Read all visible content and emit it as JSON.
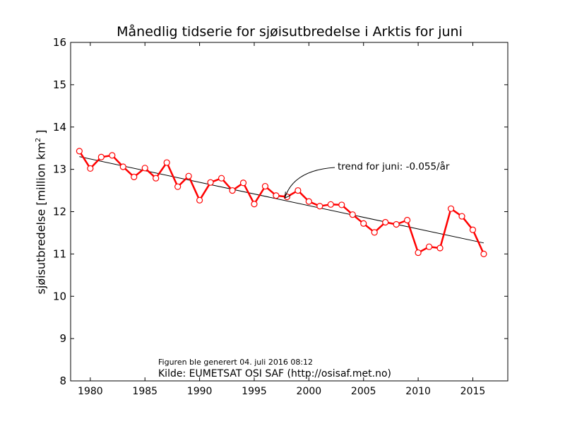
{
  "chart_data": {
    "type": "line",
    "title": "Månedlig tidserie for sjøisutbredelse i Arktis for juni",
    "xlabel": "",
    "ylabel_prefix": "sjøisutbredelse [million km",
    "ylabel_sup": "2",
    "ylabel_suffix": " ]",
    "xlim": [
      1978.2,
      2018.2
    ],
    "ylim": [
      8,
      16
    ],
    "xticks": [
      1980,
      1985,
      1990,
      1995,
      2000,
      2005,
      2010,
      2015
    ],
    "yticks": [
      8,
      9,
      10,
      11,
      12,
      13,
      14,
      15,
      16
    ],
    "grid": false,
    "series": [
      {
        "color": "#ff0000",
        "marker": "open-circle",
        "x": [
          1979,
          1980,
          1981,
          1982,
          1983,
          1984,
          1985,
          1986,
          1987,
          1988,
          1989,
          1990,
          1991,
          1992,
          1993,
          1994,
          1995,
          1996,
          1997,
          1998,
          1999,
          2000,
          2001,
          2002,
          2003,
          2004,
          2005,
          2006,
          2007,
          2008,
          2009,
          2010,
          2011,
          2012,
          2013,
          2014,
          2015,
          2016
        ],
        "y": [
          13.43,
          13.02,
          13.29,
          13.33,
          13.06,
          12.82,
          13.03,
          12.79,
          13.16,
          12.59,
          12.84,
          12.27,
          12.69,
          12.79,
          12.5,
          12.68,
          12.18,
          12.6,
          12.38,
          12.35,
          12.5,
          12.24,
          12.13,
          12.17,
          12.16,
          11.93,
          11.72,
          11.51,
          11.75,
          11.7,
          11.8,
          11.03,
          11.17,
          11.14,
          12.07,
          11.89,
          11.57,
          11.0
        ]
      }
    ],
    "trend": {
      "color": "#000000",
      "x": [
        1979,
        2016
      ],
      "y": [
        13.3,
        11.26
      ]
    },
    "annotation": {
      "text": "trend for juni: -0.055/år",
      "arrow_to": [
        1997.8,
        12.32
      ]
    }
  },
  "footer": {
    "generated": "Figuren ble generert 04. juli 2016 08:12",
    "source": "Kilde: EUMETSAT OSI SAF (http://osisaf.met.no)"
  }
}
